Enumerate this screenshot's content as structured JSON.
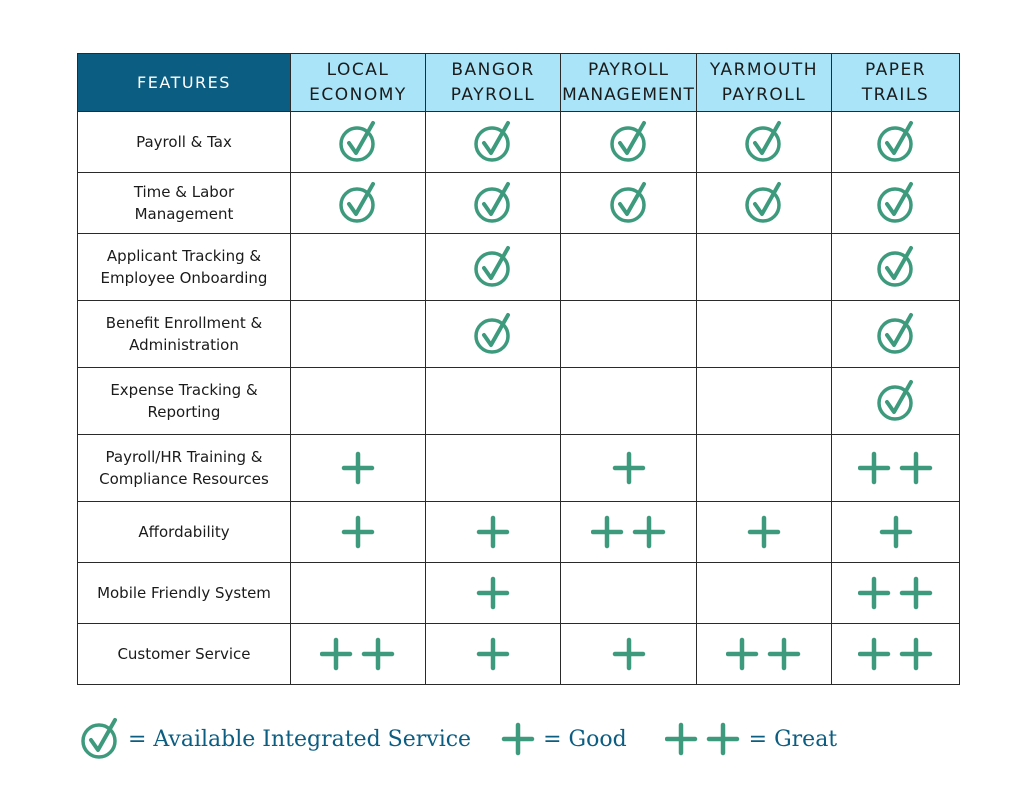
{
  "colors": {
    "mark": "#3d9a7c",
    "header_dark": "#0b5d82",
    "header_light": "#a9e4f8",
    "legend_text": "#0b5d82"
  },
  "table": {
    "feature_header": "FEATURES",
    "providers": [
      {
        "line1": "LOCAL",
        "line2": "ECONOMY"
      },
      {
        "line1": "BANGOR",
        "line2": "PAYROLL"
      },
      {
        "line1": "PAYROLL",
        "line2": "MANAGEMENT"
      },
      {
        "line1": "YARMOUTH",
        "line2": "PAYROLL"
      },
      {
        "line1": "PAPER",
        "line2": "TRAILS"
      }
    ],
    "rows": [
      {
        "feature_lines": [
          "Payroll & Tax"
        ],
        "cells": [
          "check",
          "check",
          "check",
          "check",
          "check"
        ]
      },
      {
        "feature_lines": [
          "Time & Labor",
          "Management"
        ],
        "cells": [
          "check",
          "check",
          "check",
          "check",
          "check"
        ]
      },
      {
        "feature_lines": [
          "Applicant Tracking &",
          "Employee Onboarding"
        ],
        "cells": [
          "",
          "check",
          "",
          "",
          "check"
        ]
      },
      {
        "feature_lines": [
          "Benefit Enrollment &",
          "Administration"
        ],
        "cells": [
          "",
          "check",
          "",
          "",
          "check"
        ]
      },
      {
        "feature_lines": [
          "Expense Tracking &",
          "Reporting"
        ],
        "cells": [
          "",
          "",
          "",
          "",
          "check"
        ]
      },
      {
        "feature_lines": [
          "Payroll/HR Training &",
          "Compliance Resources"
        ],
        "cells": [
          "good",
          "",
          "good",
          "",
          "great"
        ]
      },
      {
        "feature_lines": [
          "Affordability"
        ],
        "cells": [
          "good",
          "good",
          "great",
          "good",
          "good"
        ]
      },
      {
        "feature_lines": [
          "Mobile Friendly System"
        ],
        "cells": [
          "",
          "good",
          "",
          "",
          "great"
        ]
      },
      {
        "feature_lines": [
          "Customer Service"
        ],
        "cells": [
          "great",
          "good",
          "good",
          "great",
          "great"
        ]
      }
    ]
  },
  "legend": {
    "check_label": "= Available Integrated Service",
    "good_label": "= Good",
    "great_label": "= Great"
  }
}
